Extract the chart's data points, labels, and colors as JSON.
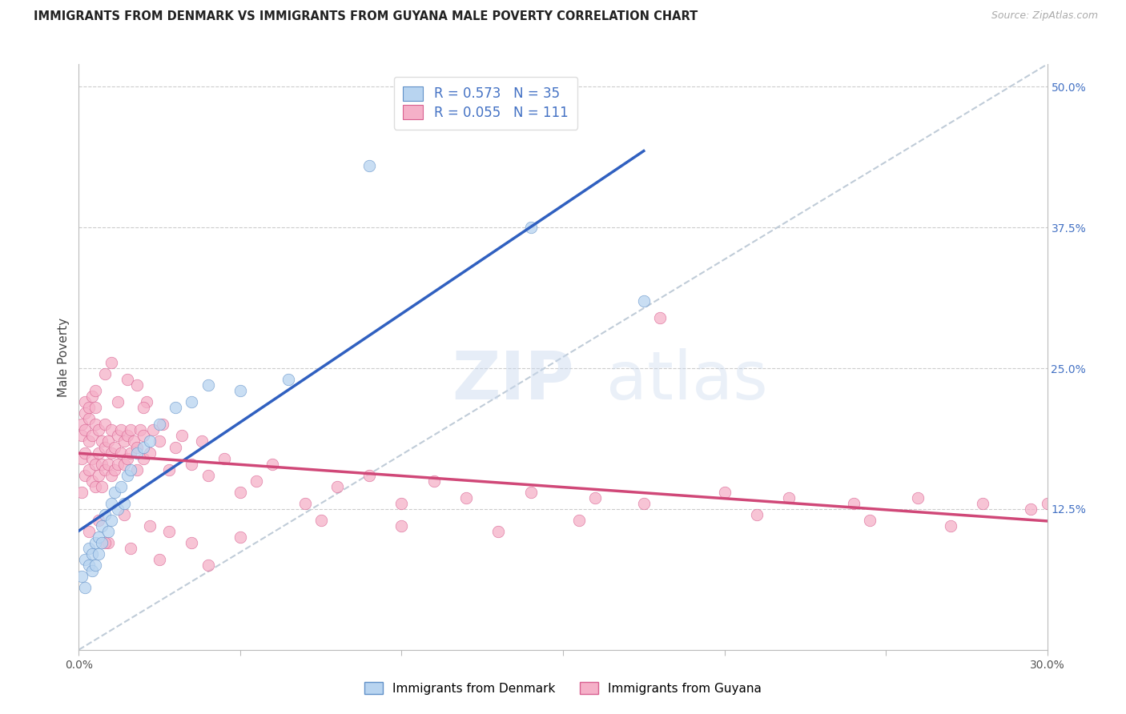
{
  "title": "IMMIGRANTS FROM DENMARK VS IMMIGRANTS FROM GUYANA MALE POVERTY CORRELATION CHART",
  "source": "Source: ZipAtlas.com",
  "ylabel": "Male Poverty",
  "y_tick_labels": [
    "12.5%",
    "25.0%",
    "37.5%",
    "50.0%"
  ],
  "y_tick_values": [
    0.125,
    0.25,
    0.375,
    0.5
  ],
  "xlim": [
    0.0,
    0.3
  ],
  "ylim": [
    0.0,
    0.52
  ],
  "legend1_R": "0.573",
  "legend1_N": "35",
  "legend2_R": "0.055",
  "legend2_N": "111",
  "label_denmark": "Immigrants from Denmark",
  "label_guyana": "Immigrants from Guyana",
  "color_denmark_fill": "#b8d4f0",
  "color_denmark_edge": "#6090c8",
  "color_guyana_fill": "#f5b0c8",
  "color_guyana_edge": "#d86090",
  "color_denmark_line": "#3060c0",
  "color_guyana_line": "#d04878",
  "color_diagonal": "#c0ccd8",
  "dk_x": [
    0.001,
    0.002,
    0.002,
    0.003,
    0.003,
    0.004,
    0.004,
    0.005,
    0.005,
    0.006,
    0.006,
    0.007,
    0.007,
    0.008,
    0.009,
    0.01,
    0.01,
    0.011,
    0.012,
    0.013,
    0.014,
    0.015,
    0.016,
    0.018,
    0.02,
    0.022,
    0.025,
    0.03,
    0.035,
    0.04,
    0.05,
    0.065,
    0.09,
    0.14,
    0.175
  ],
  "dk_y": [
    0.065,
    0.055,
    0.08,
    0.075,
    0.09,
    0.07,
    0.085,
    0.095,
    0.075,
    0.1,
    0.085,
    0.095,
    0.11,
    0.12,
    0.105,
    0.13,
    0.115,
    0.14,
    0.125,
    0.145,
    0.13,
    0.155,
    0.16,
    0.175,
    0.18,
    0.185,
    0.2,
    0.215,
    0.22,
    0.235,
    0.23,
    0.24,
    0.43,
    0.375,
    0.31
  ],
  "gy_x": [
    0.001,
    0.001,
    0.001,
    0.001,
    0.002,
    0.002,
    0.002,
    0.002,
    0.002,
    0.003,
    0.003,
    0.003,
    0.003,
    0.004,
    0.004,
    0.004,
    0.004,
    0.005,
    0.005,
    0.005,
    0.005,
    0.006,
    0.006,
    0.006,
    0.007,
    0.007,
    0.007,
    0.008,
    0.008,
    0.008,
    0.009,
    0.009,
    0.01,
    0.01,
    0.01,
    0.011,
    0.011,
    0.012,
    0.012,
    0.013,
    0.013,
    0.014,
    0.014,
    0.015,
    0.015,
    0.016,
    0.016,
    0.017,
    0.018,
    0.018,
    0.019,
    0.02,
    0.02,
    0.021,
    0.022,
    0.023,
    0.025,
    0.026,
    0.028,
    0.03,
    0.032,
    0.035,
    0.038,
    0.04,
    0.045,
    0.05,
    0.055,
    0.06,
    0.07,
    0.08,
    0.09,
    0.1,
    0.11,
    0.12,
    0.14,
    0.16,
    0.18,
    0.2,
    0.22,
    0.24,
    0.26,
    0.28,
    0.3,
    0.005,
    0.008,
    0.01,
    0.012,
    0.015,
    0.018,
    0.02,
    0.003,
    0.006,
    0.009,
    0.014,
    0.022,
    0.028,
    0.035,
    0.05,
    0.075,
    0.1,
    0.13,
    0.155,
    0.175,
    0.21,
    0.245,
    0.27,
    0.295,
    0.008,
    0.016,
    0.025,
    0.04
  ],
  "gy_y": [
    0.14,
    0.17,
    0.19,
    0.2,
    0.155,
    0.175,
    0.195,
    0.21,
    0.22,
    0.16,
    0.185,
    0.205,
    0.215,
    0.15,
    0.17,
    0.19,
    0.225,
    0.145,
    0.165,
    0.2,
    0.215,
    0.155,
    0.175,
    0.195,
    0.145,
    0.165,
    0.185,
    0.16,
    0.18,
    0.2,
    0.165,
    0.185,
    0.155,
    0.175,
    0.195,
    0.16,
    0.18,
    0.165,
    0.19,
    0.175,
    0.195,
    0.165,
    0.185,
    0.17,
    0.19,
    0.175,
    0.195,
    0.185,
    0.16,
    0.18,
    0.195,
    0.17,
    0.19,
    0.22,
    0.175,
    0.195,
    0.185,
    0.2,
    0.16,
    0.18,
    0.19,
    0.165,
    0.185,
    0.155,
    0.17,
    0.14,
    0.15,
    0.165,
    0.13,
    0.145,
    0.155,
    0.13,
    0.15,
    0.135,
    0.14,
    0.135,
    0.295,
    0.14,
    0.135,
    0.13,
    0.135,
    0.13,
    0.13,
    0.23,
    0.245,
    0.255,
    0.22,
    0.24,
    0.235,
    0.215,
    0.105,
    0.115,
    0.095,
    0.12,
    0.11,
    0.105,
    0.095,
    0.1,
    0.115,
    0.11,
    0.105,
    0.115,
    0.13,
    0.12,
    0.115,
    0.11,
    0.125,
    0.095,
    0.09,
    0.08,
    0.075
  ]
}
